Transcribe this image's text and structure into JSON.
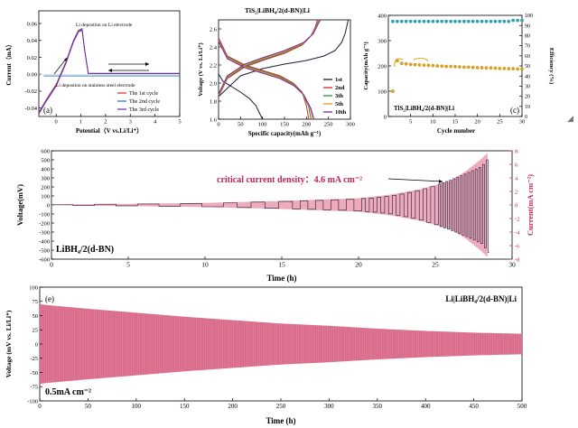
{
  "colors": {
    "black": "#000000",
    "red": "#d42a2a",
    "blue": "#1f77c4",
    "green": "#2e8b57",
    "orange": "#e69a1a",
    "purple": "#7a1fa0",
    "magenta": "#c0245b",
    "pink": "#e88fa4",
    "teal": "#2aa6b8",
    "gold": "#e0a41a",
    "ink": "#1b1b3a"
  },
  "chart_data": [
    {
      "id": "a",
      "type": "line",
      "panel": "(a)",
      "xlabel": "Potential（V vs.Li/Li⁺）",
      "ylabel": "Current（mA）",
      "xlim": [
        -0.7,
        5
      ],
      "ylim": [
        -0.05,
        0.075
      ],
      "xticks": [
        0,
        1,
        2,
        3,
        4,
        5
      ],
      "yticks": [
        -0.04,
        -0.02,
        0,
        0.02,
        0.04,
        0.06
      ],
      "yticklabels": [
        "-0.04",
        "-0.02",
        "0.00",
        "0.02",
        "0.04",
        "0.06"
      ],
      "annotations": [
        "Li depostion on Li electrode",
        "Li depostion on stainless steel electrode"
      ],
      "legend": [
        "The 1st cycle",
        "The 2nd cycle",
        "The 3rd cycle"
      ],
      "series": [
        {
          "name": "The 1st cycle",
          "color": "#d42a2a",
          "x": [
            -0.7,
            -0.4,
            0,
            0.4,
            0.7,
            0.9,
            1.05,
            1.15,
            1.3,
            1.6,
            2,
            3,
            4,
            5
          ],
          "y": [
            -0.045,
            -0.03,
            -0.012,
            0.015,
            0.04,
            0.052,
            0.054,
            0.03,
            0.001,
            0.001,
            0.001,
            0.001,
            0.001,
            0.001
          ]
        },
        {
          "name": "The 2nd cycle",
          "color": "#1f77c4",
          "x": [
            -0.7,
            -0.4,
            0,
            0.4,
            0.7,
            0.9,
            1.05,
            1.15,
            1.3,
            1.6,
            2,
            3,
            4,
            5
          ],
          "y": [
            -0.046,
            -0.031,
            -0.013,
            0.014,
            0.039,
            0.051,
            0.053,
            0.03,
            0.001,
            0.001,
            0.001,
            0.001,
            0.001,
            0.001
          ]
        },
        {
          "name": "The 3rd cycle",
          "color": "#7a1fa0",
          "x": [
            -0.7,
            -0.4,
            0,
            0.4,
            0.7,
            0.9,
            1.05,
            1.15,
            1.3,
            1.6,
            2,
            3,
            4,
            5
          ],
          "y": [
            -0.047,
            -0.032,
            -0.014,
            0.013,
            0.038,
            0.05,
            0.052,
            0.029,
            0.001,
            0.001,
            0.001,
            0.001,
            0.001,
            0.001
          ]
        }
      ]
    },
    {
      "id": "b",
      "type": "line",
      "title": "TiS₂|LiBH₄/2(d-BN)|Li",
      "xlabel": "Specific capacity(mAh g⁻¹)",
      "ylabel": "Voltage (V vs. Li/Li⁺)",
      "xlim": [
        0,
        300
      ],
      "ylim": [
        1.6,
        2.7
      ],
      "xticks": [
        0,
        50,
        100,
        150,
        200,
        250,
        300
      ],
      "yticks": [
        1.6,
        1.8,
        2.0,
        2.2,
        2.4,
        2.6
      ],
      "yticklabels": [
        "1.6",
        "1.8",
        "2.0",
        "2.2",
        "2.4",
        "2.6"
      ],
      "legend": [
        "1st",
        "2nd",
        "3th",
        "5th",
        "10th"
      ],
      "series": [
        {
          "name": "1st",
          "color": "#1b1b3a",
          "discharge": {
            "x": [
              0,
              10,
              30,
              50,
              70,
              85,
              95,
              100
            ],
            "y": [
              2.1,
              2.02,
              1.96,
              1.9,
              1.83,
              1.75,
              1.65,
              1.6
            ]
          },
          "charge": {
            "x": [
              0,
              50,
              100,
              150,
              200,
              240,
              265,
              280,
              288,
              295
            ],
            "y": [
              1.85,
              2.08,
              2.16,
              2.21,
              2.25,
              2.3,
              2.36,
              2.45,
              2.55,
              2.7
            ]
          }
        },
        {
          "name": "2nd",
          "color": "#d42a2a",
          "discharge": {
            "x": [
              0,
              20,
              60,
              100,
              140,
              170,
              190,
              200,
              205
            ],
            "y": [
              2.5,
              2.3,
              2.2,
              2.14,
              2.08,
              2.0,
              1.9,
              1.75,
              1.6
            ]
          },
          "charge": {
            "x": [
              0,
              20,
              60,
              100,
              150,
              190,
              210,
              220,
              225
            ],
            "y": [
              1.85,
              2.05,
              2.18,
              2.25,
              2.33,
              2.42,
              2.52,
              2.62,
              2.7
            ]
          }
        },
        {
          "name": "3th",
          "color": "#2e8b57",
          "discharge": {
            "x": [
              0,
              20,
              60,
              100,
              140,
              170,
              190,
              205,
              210
            ],
            "y": [
              2.48,
              2.29,
              2.19,
              2.13,
              2.07,
              1.99,
              1.89,
              1.74,
              1.6
            ]
          },
          "charge": {
            "x": [
              0,
              20,
              60,
              100,
              150,
              190,
              212,
              222,
              228
            ],
            "y": [
              1.86,
              2.06,
              2.19,
              2.26,
              2.34,
              2.43,
              2.53,
              2.63,
              2.7
            ]
          }
        },
        {
          "name": "5th",
          "color": "#e69a1a",
          "discharge": {
            "x": [
              0,
              20,
              60,
              100,
              140,
              170,
              192,
              208,
              214
            ],
            "y": [
              2.47,
              2.28,
              2.18,
              2.12,
              2.06,
              1.98,
              1.88,
              1.73,
              1.6
            ]
          },
          "charge": {
            "x": [
              0,
              20,
              60,
              100,
              150,
              192,
              214,
              224,
              230
            ],
            "y": [
              1.87,
              2.07,
              2.2,
              2.27,
              2.35,
              2.44,
              2.54,
              2.64,
              2.7
            ]
          }
        },
        {
          "name": "10th",
          "color": "#7a1fa0",
          "discharge": {
            "x": [
              0,
              20,
              60,
              100,
              140,
              172,
              194,
              210,
              217
            ],
            "y": [
              2.46,
              2.27,
              2.17,
              2.11,
              2.05,
              1.97,
              1.87,
              1.72,
              1.6
            ]
          },
          "charge": {
            "x": [
              0,
              20,
              60,
              100,
              150,
              194,
              216,
              226,
              232
            ],
            "y": [
              1.88,
              2.08,
              2.21,
              2.28,
              2.36,
              2.45,
              2.55,
              2.65,
              2.7
            ]
          }
        }
      ]
    },
    {
      "id": "c",
      "type": "scatter",
      "panel": "(c)",
      "title": "TiS₂|LiBH₄/2(d-BN)|Li",
      "xlabel": "Cycle number",
      "ylabel": "Capacity(mAh g⁻¹)",
      "ylabel_right": "Efficiency (%)",
      "xlim": [
        0,
        30
      ],
      "ylim": [
        0,
        400
      ],
      "ylim_right": [
        0,
        100
      ],
      "xticks": [
        5,
        10,
        15,
        20,
        25,
        30
      ],
      "yticks": [
        0,
        100,
        200,
        300,
        400
      ],
      "yticks_right": [
        0,
        10,
        20,
        30,
        40,
        50,
        60,
        70,
        80,
        90,
        100
      ],
      "series": [
        {
          "name": "capacity",
          "axis": "left",
          "color": "#e0a41a",
          "x": [
            1,
            2,
            3,
            4,
            5,
            6,
            7,
            8,
            9,
            10,
            11,
            12,
            13,
            14,
            15,
            16,
            17,
            18,
            19,
            20,
            21,
            22,
            23,
            24,
            25,
            26,
            27,
            28,
            29,
            30
          ],
          "y": [
            100,
            220,
            210,
            208,
            206,
            205,
            204,
            203,
            202,
            201,
            200,
            199,
            198,
            198,
            197,
            196,
            195,
            195,
            194,
            193,
            193,
            192,
            192,
            191,
            190,
            190,
            189,
            189,
            188,
            188
          ]
        },
        {
          "name": "efficiency",
          "axis": "right",
          "color": "#2aa6b8",
          "x": [
            1,
            2,
            3,
            4,
            5,
            6,
            7,
            8,
            9,
            10,
            11,
            12,
            13,
            14,
            15,
            16,
            17,
            18,
            19,
            20,
            21,
            22,
            23,
            24,
            25,
            26,
            27,
            28,
            29,
            30
          ],
          "y": [
            94,
            94,
            94,
            94,
            94,
            94,
            94,
            94,
            94,
            94,
            94,
            94,
            94,
            94,
            94,
            94,
            94,
            94,
            94,
            94,
            94,
            94,
            94,
            94,
            94,
            94,
            94,
            95,
            95,
            95
          ]
        }
      ]
    },
    {
      "id": "d",
      "type": "line",
      "xlabel": "Time (h)",
      "ylabel": "Voltage(mV)",
      "ylabel_right": "Current(mA cm⁻²)",
      "xlim": [
        0,
        30
      ],
      "ylim": [
        -600,
        600
      ],
      "ylim_right": [
        -8,
        8
      ],
      "xticks": [
        0,
        5,
        10,
        15,
        20,
        25,
        30
      ],
      "yticks": [
        -600,
        -500,
        -400,
        -300,
        -200,
        -100,
        0,
        100,
        200,
        300,
        400,
        500,
        600
      ],
      "yticks_right": [
        -8,
        -6,
        -4,
        -2,
        0,
        2,
        4,
        6,
        8
      ],
      "annotation": "critical current density：4.6 mA cm⁻²",
      "label": "LiBH₄/2(d-BN)",
      "voltage_envelope": {
        "t": [
          0,
          5,
          10,
          15,
          17,
          19,
          20,
          21,
          22,
          23,
          24,
          25,
          26,
          27,
          28,
          28.5
        ],
        "v": [
          5,
          10,
          20,
          40,
          50,
          60,
          70,
          80,
          100,
          130,
          170,
          220,
          280,
          350,
          430,
          540
        ]
      },
      "current_envelope": {
        "t": [
          0,
          10,
          15,
          20,
          22,
          24,
          26,
          27,
          28,
          28.5
        ],
        "i": [
          0.05,
          0.3,
          0.6,
          1.0,
          1.5,
          2.3,
          3.6,
          5.0,
          6.8,
          7.9
        ]
      }
    },
    {
      "id": "e",
      "type": "area",
      "panel": "(e)",
      "xlabel": "Time (h)",
      "ylabel": "Voltage (mV vs. Li/Li⁺)",
      "xlim": [
        0,
        500
      ],
      "ylim": [
        -100,
        100
      ],
      "xticks": [
        0,
        50,
        100,
        150,
        200,
        250,
        300,
        350,
        400,
        450,
        500
      ],
      "yticks": [
        -100,
        -75,
        -50,
        -25,
        0,
        25,
        50,
        75,
        100
      ],
      "label": "Li|LiBH₄/2(d-BN)|Li",
      "current_label": "0.5mA cm⁻²",
      "envelope": {
        "t": [
          0,
          10,
          50,
          100,
          150,
          200,
          250,
          300,
          350,
          400,
          450,
          500
        ],
        "v": [
          70,
          68,
          62,
          55,
          48,
          42,
          36,
          32,
          27,
          23,
          20,
          18
        ]
      }
    }
  ]
}
